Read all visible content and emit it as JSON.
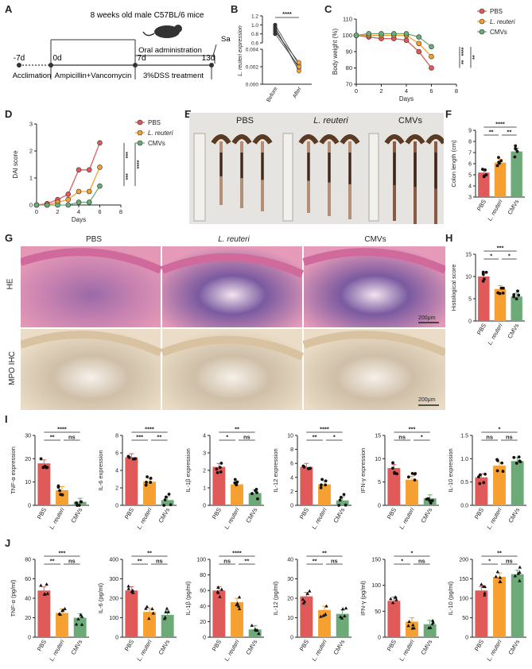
{
  "panels": {
    "A": "A",
    "B": "B",
    "C": "C",
    "D": "D",
    "E": "E",
    "F": "F",
    "G": "G",
    "H": "H",
    "I": "I",
    "J": "J"
  },
  "colors": {
    "pbs": "#e05a5a",
    "lreu": "#f5a030",
    "cmv": "#6cab78"
  },
  "legend": [
    "PBS",
    "L. reuteri",
    "CMVs"
  ],
  "groups": [
    "PBS",
    "L. reuteri",
    "CMVs"
  ],
  "timeline": {
    "title": "8 weeks old male C57BL/6 mice",
    "oral": "Oral administration",
    "sacrifice": "Sacrifice",
    "ticks": [
      "-7d",
      "0d",
      "7d",
      "13d"
    ],
    "phases": [
      "Acclimation",
      "Ampicillin+Vancomycin",
      "3%DSS treatment"
    ]
  },
  "photos": {
    "E_labels": [
      "PBS",
      "L. reuteri",
      "CMVs"
    ],
    "G_cols": [
      "PBS",
      "L. reuteri",
      "CMVs"
    ],
    "G_rows": [
      "HE",
      "MPO IHC"
    ],
    "scale1": "200μm",
    "scale2": "200μm"
  },
  "chart_data": [
    {
      "id": "B",
      "type": "line",
      "ylabel": "L. reuteri expression",
      "categories": [
        "Before",
        "After"
      ],
      "ticks": [
        "0.000",
        "0.002",
        "0.004",
        "0.6",
        "0.8",
        "1.0",
        "1.2"
      ],
      "pairs": [
        [
          1.0,
          0.0022
        ],
        [
          0.9,
          0.0018
        ],
        [
          0.85,
          0.0025
        ],
        [
          0.8,
          0.002
        ],
        [
          0.95,
          0.0015
        ]
      ],
      "sig": "****"
    },
    {
      "id": "C",
      "type": "line",
      "ylabel": "Body weight (%)",
      "xlabel": "Days",
      "xlim": [
        0,
        8
      ],
      "ylim": [
        70,
        110
      ],
      "yticks": [
        "70",
        "80",
        "90",
        "100",
        "110"
      ],
      "xticks": [
        "0",
        "2",
        "4",
        "6",
        "8"
      ],
      "x": [
        0,
        1,
        2,
        3,
        4,
        5,
        6
      ],
      "series": [
        {
          "name": "PBS",
          "values": [
            100,
            99,
            98,
            98,
            97,
            90,
            80
          ]
        },
        {
          "name": "L. reuteri",
          "values": [
            100,
            100,
            100,
            100,
            100,
            95,
            87
          ]
        },
        {
          "name": "CMVs",
          "values": [
            100,
            101,
            101,
            101,
            101,
            99,
            93
          ]
        }
      ],
      "sig": [
        "**",
        "****",
        "**"
      ]
    },
    {
      "id": "D",
      "type": "line",
      "ylabel": "DAI score",
      "xlabel": "Days",
      "xlim": [
        0,
        8
      ],
      "ylim": [
        0,
        3
      ],
      "yticks": [
        "0",
        "1",
        "2",
        "3"
      ],
      "xticks": [
        "0",
        "2",
        "4",
        "6",
        "8"
      ],
      "x": [
        0,
        1,
        2,
        3,
        4,
        5,
        6
      ],
      "series": [
        {
          "name": "PBS",
          "values": [
            0,
            0.05,
            0.2,
            0.4,
            1.3,
            1.3,
            2.3
          ]
        },
        {
          "name": "L. reuteri",
          "values": [
            0,
            0,
            0.1,
            0.2,
            0.5,
            0.5,
            1.4
          ]
        },
        {
          "name": "CMVs",
          "values": [
            0,
            0,
            0,
            0,
            0.1,
            0.1,
            0.7
          ]
        }
      ],
      "sig": [
        "***",
        "***",
        "****"
      ]
    },
    {
      "id": "F",
      "type": "bar",
      "ylabel": "Colon length (cm)",
      "ylim": [
        3,
        9
      ],
      "yticks": [
        "3",
        "4",
        "5",
        "6",
        "7",
        "8",
        "9"
      ],
      "values": [
        5.2,
        6.1,
        7.1
      ],
      "sig": [
        "**",
        "**",
        "****"
      ]
    },
    {
      "id": "H",
      "type": "bar",
      "ylabel": "Histological score",
      "ylim": [
        0,
        15
      ],
      "yticks": [
        "0",
        "5",
        "10",
        "15"
      ],
      "values": [
        10,
        7.2,
        5.5
      ],
      "sig": [
        "*",
        "*",
        "***"
      ]
    },
    {
      "id": "I1",
      "type": "bar",
      "ylabel": "TNF-α expression",
      "ylim": [
        0,
        30
      ],
      "yticks": [
        "0",
        "10",
        "20",
        "30"
      ],
      "values": [
        18,
        6.5,
        1.5
      ],
      "sig": [
        "**",
        "ns",
        "****"
      ]
    },
    {
      "id": "I2",
      "type": "bar",
      "ylabel": "IL-6 expression",
      "ylim": [
        0,
        8
      ],
      "yticks": [
        "0",
        "2",
        "4",
        "6",
        "8"
      ],
      "values": [
        5.5,
        2.7,
        0.6
      ],
      "sig": [
        "***",
        "**",
        "****"
      ]
    },
    {
      "id": "I3",
      "type": "bar",
      "ylabel": "IL-1β expression",
      "ylim": [
        0,
        4
      ],
      "yticks": [
        "0",
        "1",
        "2",
        "3",
        "4"
      ],
      "values": [
        2.2,
        1.2,
        0.7
      ],
      "sig": [
        "*",
        "ns",
        "**"
      ]
    },
    {
      "id": "I4",
      "type": "bar",
      "ylabel": "IL-12 expression",
      "ylim": [
        0,
        10
      ],
      "yticks": [
        "0",
        "2",
        "4",
        "6",
        "8",
        "10"
      ],
      "values": [
        5.5,
        3.0,
        0.7
      ],
      "sig": [
        "**",
        "*",
        "****"
      ]
    },
    {
      "id": "I5",
      "type": "bar",
      "ylabel": "IFN-γ expression",
      "ylim": [
        0,
        15
      ],
      "yticks": [
        "0",
        "5",
        "10",
        "15"
      ],
      "values": [
        8,
        5.5,
        1.5
      ],
      "sig": [
        "ns",
        "*",
        "***"
      ]
    },
    {
      "id": "I6",
      "type": "bar",
      "ylabel": "IL-10 expression",
      "ylim": [
        0,
        1.5
      ],
      "yticks": [
        "0.0",
        "0.5",
        "1.0",
        "1.5"
      ],
      "values": [
        0.6,
        0.85,
        0.95
      ],
      "sig": [
        "ns",
        "ns",
        "*"
      ]
    },
    {
      "id": "J1",
      "type": "bar",
      "ylabel": "TNF-α (pg/ml)",
      "ylim": [
        0,
        80
      ],
      "yticks": [
        "0",
        "20",
        "40",
        "60",
        "80"
      ],
      "values": [
        48,
        25,
        20
      ],
      "sig": [
        "**",
        "ns",
        "***"
      ]
    },
    {
      "id": "J2",
      "type": "bar",
      "ylabel": "IL-6 (pg/ml)",
      "ylim": [
        0,
        400
      ],
      "yticks": [
        "0",
        "100",
        "200",
        "300",
        "400"
      ],
      "values": [
        240,
        130,
        115
      ],
      "sig": [
        "**",
        "ns",
        "**"
      ]
    },
    {
      "id": "J3",
      "type": "bar",
      "ylabel": "IL-1β (pg/ml)",
      "ylim": [
        0,
        100
      ],
      "yticks": [
        "0",
        "20",
        "40",
        "60",
        "80",
        "100"
      ],
      "values": [
        60,
        45,
        10
      ],
      "sig": [
        "ns",
        "**",
        "****"
      ]
    },
    {
      "id": "J4",
      "type": "bar",
      "ylabel": "IL-12 (pg/ml)",
      "ylim": [
        0,
        40
      ],
      "yticks": [
        "0",
        "10",
        "20",
        "30",
        "40"
      ],
      "values": [
        21,
        14,
        12
      ],
      "sig": [
        "**",
        "ns",
        "**"
      ]
    },
    {
      "id": "J5",
      "type": "bar",
      "ylabel": "IFN-γ (pg/ml)",
      "ylim": [
        0,
        150
      ],
      "yticks": [
        "0",
        "50",
        "100",
        "150"
      ],
      "values": [
        70,
        30,
        25
      ],
      "sig": [
        "*",
        "ns",
        "*"
      ]
    },
    {
      "id": "J6",
      "type": "bar",
      "ylabel": "IL-10 (pg/ml)",
      "ylim": [
        0,
        200
      ],
      "yticks": [
        "0",
        "50",
        "100",
        "150",
        "200"
      ],
      "values": [
        120,
        155,
        162
      ],
      "sig": [
        "*",
        "ns",
        "**"
      ]
    }
  ]
}
